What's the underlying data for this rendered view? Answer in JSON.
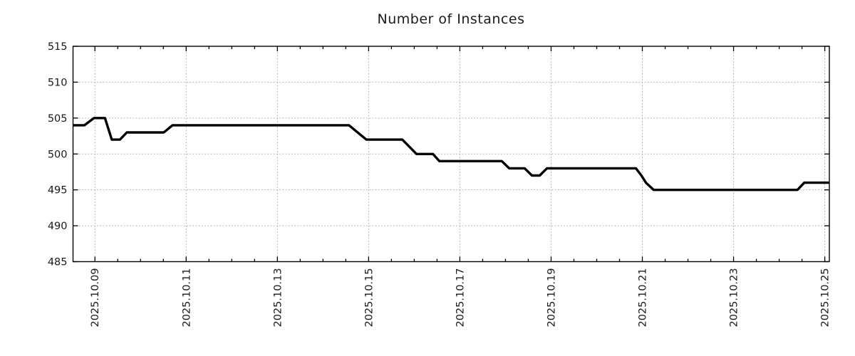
{
  "page": {
    "background": "#ffffff"
  },
  "chart_data": {
    "type": "line",
    "title": "Number of Instances",
    "legend": {
      "show": false
    },
    "grid": {
      "show": true,
      "style": "dotted",
      "color": "#a8a8a8"
    },
    "x_axis": {
      "origin_date_label": "2025.10.09",
      "domain_days": [
        -0.48,
        16.1
      ],
      "major_tick_positions_days": [
        0,
        2,
        4,
        6,
        8,
        10,
        12,
        14,
        16
      ],
      "minor_tick_step_days": 0.5,
      "tick_labels": [
        "2025.10.09",
        "2025.10.11",
        "2025.10.13",
        "2025.10.15",
        "2025.10.17",
        "2025.10.19",
        "2025.10.21",
        "2025.10.23",
        "2025.10.25"
      ],
      "label_rotation_deg": -90
    },
    "y_axis": {
      "min": 485,
      "max": 515,
      "tick_step": 5,
      "tick_labels": [
        "485",
        "490",
        "495",
        "500",
        "505",
        "510",
        "515"
      ]
    },
    "series": [
      {
        "name": "Number of Instances",
        "color": "#000000",
        "line_width": 3.4,
        "points_days_value": [
          [
            -0.48,
            504
          ],
          [
            -0.23,
            504
          ],
          [
            -0.02,
            505
          ],
          [
            0.22,
            505
          ],
          [
            0.37,
            502
          ],
          [
            0.55,
            502
          ],
          [
            0.7,
            503
          ],
          [
            1.51,
            503
          ],
          [
            1.7,
            504
          ],
          [
            5.57,
            504
          ],
          [
            5.95,
            502
          ],
          [
            6.74,
            502
          ],
          [
            7.05,
            500
          ],
          [
            7.41,
            500
          ],
          [
            7.55,
            499
          ],
          [
            8.92,
            499
          ],
          [
            9.08,
            498
          ],
          [
            9.42,
            498
          ],
          [
            9.58,
            497
          ],
          [
            9.75,
            497
          ],
          [
            9.91,
            498
          ],
          [
            11.86,
            498
          ],
          [
            11.98,
            497
          ],
          [
            12.08,
            496
          ],
          [
            12.25,
            495
          ],
          [
            15.4,
            495
          ],
          [
            15.55,
            496
          ],
          [
            16.1,
            496
          ]
        ]
      }
    ],
    "style": {
      "axis_color": "#000000",
      "tick_label_color": "#1a1a1a",
      "title_color": "#1a1a1a"
    }
  }
}
